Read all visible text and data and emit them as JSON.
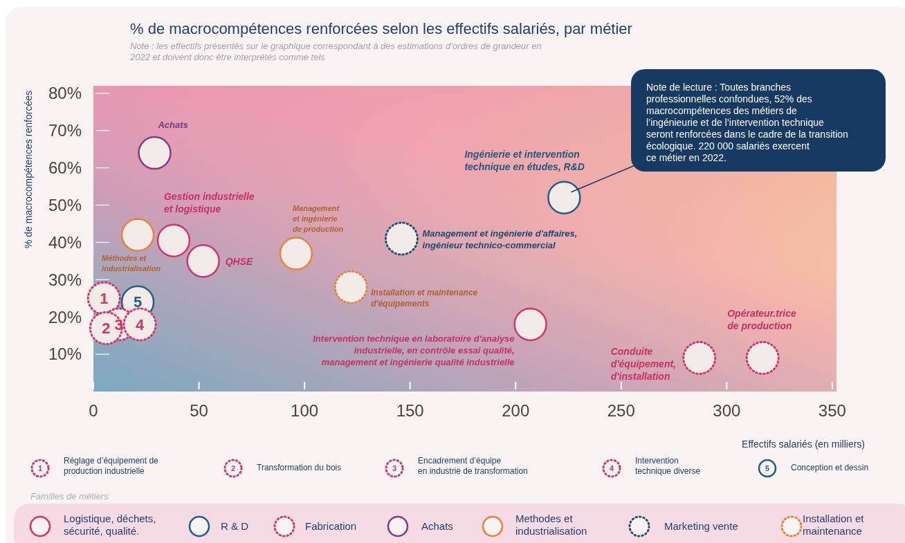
{
  "chart_data": {
    "type": "scatter",
    "title": "% de macrocompétences renforcées selon les effectifs salariés, par métier",
    "subtitle": "Note : les effectifs présentés sur le graphique correspondant à des estimations d’ordres de grandeur en\n2022 et doivent donc être interprétés comme tels",
    "xlabel": "Effectifs salariés (en milliers)",
    "ylabel": "% de macrocompétences renforcées",
    "xlim": [
      0,
      352
    ],
    "xticks": [
      0,
      50,
      100,
      150,
      200,
      250,
      300,
      350
    ],
    "ylim": [
      0,
      82
    ],
    "yticks": [
      {
        "value": 10,
        "label": "10%"
      },
      {
        "value": 20,
        "label": "20%"
      },
      {
        "value": 30,
        "label": "30%"
      },
      {
        "value": 40,
        "label": "40%"
      },
      {
        "value": 50,
        "label": "50%"
      },
      {
        "value": 60,
        "label": "60%"
      },
      {
        "value": 70,
        "label": "70%"
      },
      {
        "value": 80,
        "label": "80%"
      }
    ],
    "marker": "circle",
    "legend": "bottom",
    "series": [
      {
        "name": "Logistique, déchets,\nsécurité, qualité.",
        "color": "#d6336c",
        "line_style": "solid",
        "x": [
          38,
          52,
          207
        ],
        "values": [
          40.5,
          35,
          18
        ]
      },
      {
        "name": "R & D",
        "color": "#1f5f8b",
        "line_style": "solid",
        "x": [
          223,
          21
        ],
        "values": [
          52,
          24
        ]
      },
      {
        "name": "Fabrication",
        "color": "#d6336c",
        "line_style": "dotted",
        "x": [
          5,
          12,
          22,
          287,
          317,
          6
        ],
        "values": [
          25,
          18,
          18,
          9,
          9,
          17
        ]
      },
      {
        "name": "Achats",
        "color": "#7e3f8a",
        "line_style": "solid",
        "x": [
          29
        ],
        "values": [
          64
        ]
      },
      {
        "name": "Methodes et\nindustrialisation",
        "color": "#e8833a",
        "line_style": "solid",
        "x": [
          21,
          96
        ],
        "values": [
          42,
          37
        ]
      },
      {
        "name": "Marketing vente",
        "color": "#1f4e79",
        "line_style": "dotted",
        "x": [
          146
        ],
        "values": [
          41
        ]
      },
      {
        "name": "Installation et\nmaintenance",
        "color": "#e8833a",
        "line_style": "dotted",
        "x": [
          122
        ],
        "values": [
          28
        ]
      }
    ],
    "annotations": [
      {
        "text": "Achats",
        "x": 29,
        "y": 64
      },
      {
        "text": "Gestion industrielle\net logistique",
        "x": 38,
        "y": 40.5
      },
      {
        "text": "QHSE",
        "x": 52,
        "y": 35
      },
      {
        "text": "Méthodes et\nindustrialisation",
        "x": 21,
        "y": 42
      },
      {
        "text": "Management\net ingénierie\nde production",
        "x": 96,
        "y": 37
      },
      {
        "text": "Management et ingénierie d'affaires,\ningénieur technico-commercial",
        "x": 146,
        "y": 41
      },
      {
        "text": "Installation et maintenance\nd'équipements",
        "x": 122,
        "y": 28
      },
      {
        "text": "Intervention technique en laboratoire d'analyse\nindustrielle, en contrôle essai qualité,\nmanagement et ingénierie qualité industrielle",
        "x": 207,
        "y": 18
      },
      {
        "text": "Ingénierie et intervention\ntechnique en études, R&D",
        "x": 223,
        "y": 52
      },
      {
        "text": "Conduite\nd'équipement,\nd'installation",
        "x": 287,
        "y": 9
      },
      {
        "text": "Opérateur.trice\nde production",
        "x": 317,
        "y": 9
      },
      {
        "text": "1",
        "x": 5,
        "y": 25
      },
      {
        "text": "2",
        "x": 6,
        "y": 17
      },
      {
        "text": "3",
        "x": 12,
        "y": 18
      },
      {
        "text": "4",
        "x": 22,
        "y": 18
      },
      {
        "text": "5",
        "x": 21,
        "y": 24
      },
      "Réglage d’équipement de\nproduction industrielle",
      "Transformation du bois",
      "Encadrement d’équipe\nen industrie de transformation",
      "Intervention\ntechnique diverse",
      "Conception et dessin",
      "Familles de métiers",
      "Note de lecture : Toutes branches\nprofessionnelles confondues, 52% des\nmacrocompétences des métiers de\nl’ingénieurie et de l’intervention technique\nseront renforcées dans le cadre de la transition\nécologique. 220 000 salariés exercent\nce métier en 2022."
    ]
  }
}
